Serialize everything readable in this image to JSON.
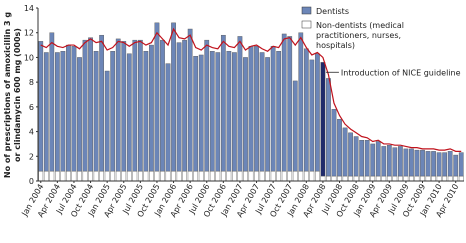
{
  "chart_data": {
    "type": "bar",
    "stacked": true,
    "y_label_lines": [
      "No of prescriptions of amoxicillin 3 g",
      "or clindamycin 600 mg (000s)"
    ],
    "categories": [
      "Jan 2004",
      null,
      null,
      "Apr 2004",
      null,
      null,
      "Jul 2004",
      null,
      null,
      "Oct 2004",
      null,
      null,
      "Jan 2005",
      null,
      null,
      "Apr 2005",
      null,
      null,
      "Jul 2005",
      null,
      null,
      "Oct 2005",
      null,
      null,
      "Jan 2006",
      null,
      null,
      "Apr 2006",
      null,
      null,
      "Jul 2006",
      null,
      null,
      "Oct 2006",
      null,
      null,
      "Jan 2007",
      null,
      null,
      "Apr 2007",
      null,
      null,
      "Jul 2007",
      null,
      null,
      "Oct 2007",
      null,
      null,
      "Jan 2008",
      null,
      null,
      "Apr 2008",
      null,
      null,
      "Jul 2008",
      null,
      null,
      "Oct 2008",
      null,
      null,
      "Jan 2009",
      null,
      null,
      "Apr 2009",
      null,
      null,
      "Jul 2009",
      null,
      null,
      "Oct 2009",
      null,
      null,
      "Jan 2010",
      null,
      null,
      "Apr 2010",
      null
    ],
    "series": [
      {
        "name": "Non-dentists (medical practitioners, nurses, hospitals)",
        "color": "#ffffff",
        "values": [
          0.8,
          0.8,
          0.8,
          0.8,
          0.8,
          0.8,
          0.8,
          0.8,
          0.8,
          0.8,
          0.8,
          0.8,
          0.8,
          0.8,
          0.8,
          0.8,
          0.8,
          0.8,
          0.8,
          0.8,
          0.8,
          0.8,
          0.8,
          0.8,
          0.8,
          0.8,
          0.8,
          0.8,
          0.8,
          0.8,
          0.8,
          0.8,
          0.8,
          0.8,
          0.8,
          0.8,
          0.8,
          0.8,
          0.8,
          0.8,
          0.8,
          0.8,
          0.8,
          0.8,
          0.8,
          0.8,
          0.8,
          0.8,
          0.8,
          0.8,
          0.8,
          0.4,
          0.4,
          0.4,
          0.4,
          0.4,
          0.4,
          0.4,
          0.4,
          0.4,
          0.4,
          0.4,
          0.4,
          0.4,
          0.4,
          0.4,
          0.4,
          0.4,
          0.4,
          0.4,
          0.4,
          0.4,
          0.4,
          0.4,
          0.4,
          0.4,
          0.4
        ]
      },
      {
        "name": "Dentists",
        "color": "#6c86b8",
        "values": [
          10.5,
          9.6,
          11.2,
          9.6,
          9.7,
          10.2,
          10.1,
          9.2,
          10.6,
          10.8,
          9.7,
          11.0,
          8.1,
          9.7,
          10.7,
          10.5,
          9.5,
          10.6,
          10.6,
          9.7,
          10.2,
          12.0,
          10.6,
          8.7,
          12.0,
          10.4,
          10.6,
          11.5,
          9.3,
          9.4,
          10.6,
          9.7,
          9.6,
          11.0,
          9.7,
          9.6,
          10.9,
          9.2,
          10.1,
          10.1,
          9.6,
          9.2,
          10.1,
          9.7,
          11.1,
          10.9,
          7.3,
          11.2,
          9.9,
          9.0,
          9.5,
          9.2,
          7.9,
          5.4,
          4.6,
          3.9,
          3.5,
          3.2,
          2.9,
          2.9,
          2.6,
          2.8,
          2.4,
          2.5,
          2.3,
          2.4,
          2.2,
          2.2,
          2.1,
          2.1,
          2.0,
          2.0,
          1.9,
          1.9,
          2.0,
          1.7,
          1.9
        ]
      }
    ],
    "lines": [
      {
        "color": "#c0121c",
        "values": [
          11.0,
          10.8,
          11.2,
          10.9,
          10.8,
          11.0,
          11.0,
          10.7,
          11.2,
          11.5,
          11.2,
          11.3,
          10.6,
          10.8,
          11.3,
          11.2,
          10.9,
          11.2,
          11.3,
          11.0,
          11.2,
          12.0,
          11.5,
          11.0,
          12.3,
          11.6,
          11.5,
          11.8,
          10.8,
          10.6,
          11.0,
          10.8,
          10.7,
          11.3,
          10.9,
          10.8,
          11.3,
          10.6,
          10.9,
          11.0,
          10.7,
          10.5,
          10.9,
          10.8,
          11.5,
          11.6,
          11.0,
          11.6,
          10.8,
          10.2,
          10.4,
          10.0,
          8.6,
          6.3,
          5.3,
          4.6,
          4.2,
          3.9,
          3.6,
          3.5,
          3.2,
          3.3,
          3.0,
          3.0,
          2.9,
          2.9,
          2.8,
          2.7,
          2.7,
          2.6,
          2.6,
          2.6,
          2.5,
          2.5,
          2.6,
          2.4,
          2.4
        ]
      }
    ],
    "highlight": {
      "index": 51,
      "color": "#1f2a6b"
    },
    "annotation": {
      "text": "Introduction of NICE guideline",
      "index": 51
    },
    "ylim": [
      0,
      14
    ],
    "yticks": [
      0,
      2,
      4,
      6,
      8,
      10,
      12,
      14
    ]
  }
}
